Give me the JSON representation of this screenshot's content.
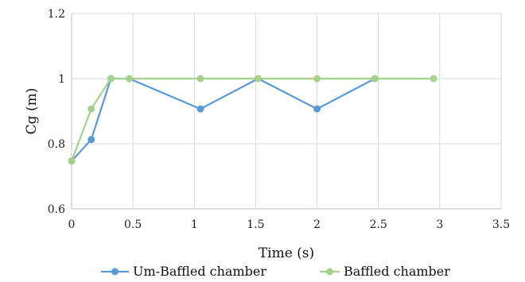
{
  "chart_data": {
    "type": "line",
    "title": "",
    "xlabel": "Time (s)",
    "ylabel": "Cg (m)",
    "xlim": [
      0,
      3.5
    ],
    "ylim": [
      0.6,
      1.2
    ],
    "x_ticks": [
      "0",
      "0.5",
      "1",
      "1.5",
      "2",
      "2.5",
      "3",
      "3.5"
    ],
    "y_ticks": [
      "0.6",
      "0.8",
      "1",
      "1.2"
    ],
    "grid": true,
    "legend_position": "bottom",
    "series": [
      {
        "name": "Um-Baffled chamber",
        "color": "#5b9bd5",
        "points": [
          {
            "x": 0,
            "y": 0.747
          },
          {
            "x": 0.16,
            "y": 0.813
          },
          {
            "x": 0.32,
            "y": 1.0
          },
          {
            "x": 0.47,
            "y": 1.0
          },
          {
            "x": 1.05,
            "y": 0.907
          },
          {
            "x": 1.52,
            "y": 1.0
          },
          {
            "x": 2.0,
            "y": 0.907
          },
          {
            "x": 2.47,
            "y": 1.0
          }
        ]
      },
      {
        "name": "Baffled chamber",
        "color": "#a9d18e",
        "points": [
          {
            "x": 0,
            "y": 0.747
          },
          {
            "x": 0.16,
            "y": 0.907
          },
          {
            "x": 0.32,
            "y": 1.0
          },
          {
            "x": 0.47,
            "y": 1.0
          },
          {
            "x": 1.05,
            "y": 1.0
          },
          {
            "x": 1.52,
            "y": 1.0
          },
          {
            "x": 2.0,
            "y": 1.0
          },
          {
            "x": 2.47,
            "y": 1.0
          },
          {
            "x": 2.95,
            "y": 1.0
          }
        ]
      }
    ]
  }
}
